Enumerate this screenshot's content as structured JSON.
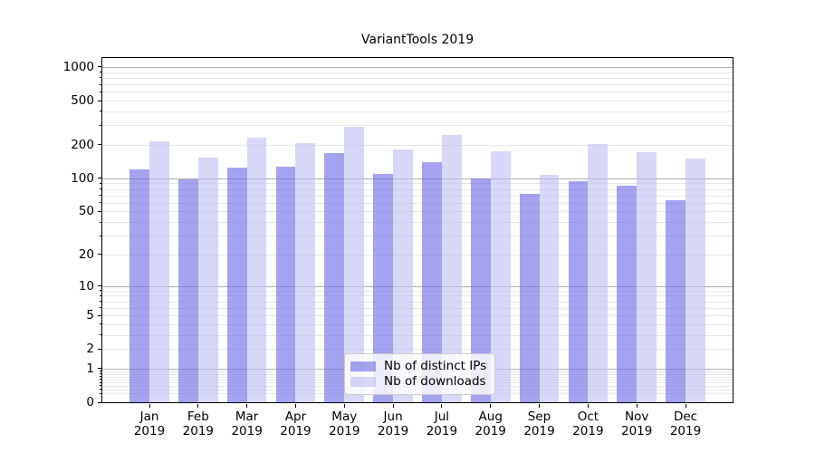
{
  "chart_data": {
    "type": "bar",
    "title": "VariantTools 2019",
    "categories": [
      "Jan\n2019",
      "Feb\n2019",
      "Mar\n2019",
      "Apr\n2019",
      "May\n2019",
      "Jun\n2019",
      "Jul\n2019",
      "Aug\n2019",
      "Sep\n2019",
      "Oct\n2019",
      "Nov\n2019",
      "Dec\n2019"
    ],
    "series": [
      {
        "name": "Nb of distinct IPs",
        "fill": "rgba(106,106,229,0.62)",
        "legend_color": "#a3a3ee",
        "values": [
          120,
          97,
          125,
          127,
          170,
          110,
          140,
          100,
          73,
          95,
          85,
          63
        ]
      },
      {
        "name": "Nb of downloads",
        "fill": "rgba(190,190,242,0.62)",
        "legend_color": "#d6d6f7",
        "values": [
          215,
          155,
          233,
          206,
          290,
          182,
          245,
          176,
          108,
          203,
          173,
          150
        ]
      }
    ],
    "xlabel": "",
    "ylabel": "",
    "yscale": "log1p",
    "yticks": [
      1000,
      500,
      200,
      100,
      50,
      20,
      10,
      5,
      2,
      1,
      0
    ],
    "ylim": [
      0,
      1230
    ],
    "grid": "both",
    "legend_position": "lower-center",
    "colors": {
      "grid_major": "#b0b0b0",
      "grid_minor": "#e7e7e7",
      "axis": "#000000",
      "background": "#ffffff"
    }
  }
}
